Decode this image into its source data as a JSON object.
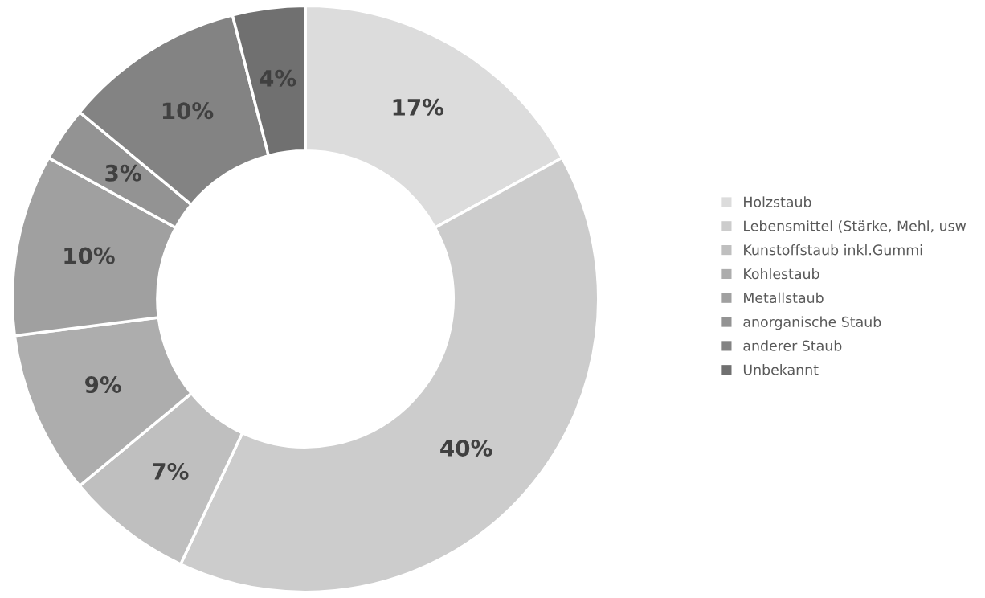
{
  "chart_data": {
    "type": "donut",
    "categories": [
      "Holzstaub",
      "Lebensmittel (Stärke, Mehl, usw",
      "Kunstoffstaub inkl.Gummi",
      "Kohlestaub",
      "Metallstaub",
      "anorganische Staub",
      "anderer Staub",
      "Unbekannt"
    ],
    "values": [
      17,
      40,
      7,
      9,
      10,
      3,
      10,
      4
    ],
    "colors": [
      "#dcdcdc",
      "#cccccc",
      "#bfbfbf",
      "#adadad",
      "#a0a0a0",
      "#939393",
      "#838383",
      "#707070"
    ],
    "value_labels": [
      "17%",
      "40%",
      "7%",
      "9%",
      "10%",
      "3%",
      "10%",
      "4%"
    ],
    "legend": "right"
  }
}
